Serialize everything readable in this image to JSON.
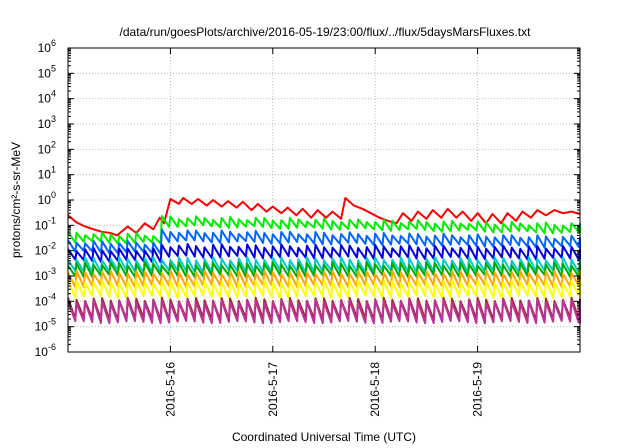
{
  "chart_data": {
    "type": "line",
    "title": "/data/run/goesPlots/archive/2016-05-19/23:00/flux/../flux/5daysMarsFluxes.txt",
    "xlabel": "Coordinated Universal Time (UTC)",
    "ylabel": "protons/cm²-s-sr-MeV",
    "xlim": [
      "2016-05-15 00:00",
      "2016-05-20 00:00"
    ],
    "ylim": [
      1e-06,
      1000000
    ],
    "y_scale": "log",
    "grid": true,
    "x_ticks": [
      "2016-5-16",
      "2016-5-17",
      "2016-5-18",
      "2016-5-19"
    ],
    "y_ticks": [
      {
        "value": 1e-06,
        "label": "10",
        "exp": "-6"
      },
      {
        "value": 1e-05,
        "label": "10",
        "exp": "-5"
      },
      {
        "value": 0.0001,
        "label": "10",
        "exp": "-4"
      },
      {
        "value": 0.001,
        "label": "10",
        "exp": "-3"
      },
      {
        "value": 0.01,
        "label": "10",
        "exp": "-2"
      },
      {
        "value": 0.1,
        "label": "10",
        "exp": "-1"
      },
      {
        "value": 1,
        "label": "10",
        "exp": "0"
      },
      {
        "value": 10,
        "label": "10",
        "exp": "1"
      },
      {
        "value": 100,
        "label": "10",
        "exp": "2"
      },
      {
        "value": 1000,
        "label": "10",
        "exp": "3"
      },
      {
        "value": 10000,
        "label": "10",
        "exp": "4"
      },
      {
        "value": 100000,
        "label": "10",
        "exp": "5"
      },
      {
        "value": 1000000,
        "label": "10",
        "exp": "6"
      }
    ],
    "series": [
      {
        "color": "#ff0000",
        "values": [
          [
            "2016-05-15 00:00",
            0.25
          ],
          [
            "2016-05-15 02:00",
            0.13
          ],
          [
            "2016-05-15 04:00",
            0.09
          ],
          [
            "2016-05-15 06:00",
            0.07
          ],
          [
            "2016-05-15 08:00",
            0.055
          ],
          [
            "2016-05-15 10:00",
            0.05
          ],
          [
            "2016-05-15 11:30",
            0.04
          ],
          [
            "2016-05-15 14:00",
            0.09
          ],
          [
            "2016-05-15 16:00",
            0.05
          ],
          [
            "2016-05-15 18:00",
            0.12
          ],
          [
            "2016-05-15 20:00",
            0.07
          ],
          [
            "2016-05-15 21:30",
            0.2
          ],
          [
            "2016-05-15 22:30",
            0.12
          ],
          [
            "2016-05-16 00:00",
            1.1
          ],
          [
            "2016-05-16 02:00",
            0.7
          ],
          [
            "2016-05-16 03:00",
            1.2
          ],
          [
            "2016-05-16 05:00",
            0.7
          ],
          [
            "2016-05-16 06:30",
            1.1
          ],
          [
            "2016-05-16 08:30",
            0.6
          ],
          [
            "2016-05-16 10:00",
            1.0
          ],
          [
            "2016-05-16 12:00",
            0.55
          ],
          [
            "2016-05-16 13:30",
            0.9
          ],
          [
            "2016-05-16 15:30",
            0.5
          ],
          [
            "2016-05-16 17:00",
            0.85
          ],
          [
            "2016-05-16 19:00",
            0.4
          ],
          [
            "2016-05-16 20:30",
            0.7
          ],
          [
            "2016-05-16 22:30",
            0.35
          ],
          [
            "2016-05-17 00:00",
            0.55
          ],
          [
            "2016-05-17 02:00",
            0.3
          ],
          [
            "2016-05-17 03:30",
            0.5
          ],
          [
            "2016-05-17 05:30",
            0.25
          ],
          [
            "2016-05-17 07:00",
            0.45
          ],
          [
            "2016-05-17 09:00",
            0.2
          ],
          [
            "2016-05-17 10:30",
            0.4
          ],
          [
            "2016-05-17 12:30",
            0.2
          ],
          [
            "2016-05-17 14:00",
            0.35
          ],
          [
            "2016-05-17 16:00",
            0.18
          ],
          [
            "2016-05-17 17:00",
            1.2
          ],
          [
            "2016-05-17 19:00",
            0.6
          ],
          [
            "2016-05-17 21:00",
            0.45
          ],
          [
            "2016-05-17 23:00",
            0.3
          ],
          [
            "2016-05-18 01:00",
            0.2
          ],
          [
            "2016-05-18 03:00",
            0.15
          ],
          [
            "2016-05-18 05:00",
            0.12
          ],
          [
            "2016-05-18 06:30",
            0.3
          ],
          [
            "2016-05-18 08:30",
            0.15
          ],
          [
            "2016-05-18 10:00",
            0.35
          ],
          [
            "2016-05-18 12:00",
            0.18
          ],
          [
            "2016-05-18 13:30",
            0.4
          ],
          [
            "2016-05-18 15:30",
            0.2
          ],
          [
            "2016-05-18 17:00",
            0.45
          ],
          [
            "2016-05-18 19:00",
            0.2
          ],
          [
            "2016-05-18 20:30",
            0.35
          ],
          [
            "2016-05-18 22:30",
            0.15
          ],
          [
            "2016-05-19 00:00",
            0.3
          ],
          [
            "2016-05-19 02:00",
            0.12
          ],
          [
            "2016-05-19 03:30",
            0.28
          ],
          [
            "2016-05-19 05:30",
            0.12
          ],
          [
            "2016-05-19 07:00",
            0.3
          ],
          [
            "2016-05-19 09:00",
            0.15
          ],
          [
            "2016-05-19 10:30",
            0.35
          ],
          [
            "2016-05-19 12:30",
            0.2
          ],
          [
            "2016-05-19 14:00",
            0.4
          ],
          [
            "2016-05-19 16:00",
            0.25
          ],
          [
            "2016-05-19 18:00",
            0.4
          ],
          [
            "2016-05-19 20:00",
            0.3
          ],
          [
            "2016-05-19 22:00",
            0.35
          ],
          [
            "2016-05-20 00:00",
            0.28
          ]
        ]
      },
      {
        "color": "#00ee00",
        "base": 0.022,
        "amp": 2.2,
        "jump": {
          "at": "2016-05-15 21:30",
          "factor": 5
        },
        "decay": -0.35
      },
      {
        "color": "#0066ff",
        "base": 0.009,
        "amp": 2.5,
        "jump": {
          "at": "2016-05-15 21:30",
          "factor": 3
        },
        "decay": -0.3
      },
      {
        "color": "#0000dd",
        "base": 0.004,
        "amp": 2.8,
        "jump": {
          "at": "2016-05-15 21:30",
          "factor": 1.5
        },
        "decay": -0.1
      },
      {
        "color": "#00cccc",
        "base": 0.0015,
        "amp": 3.2
      },
      {
        "color": "#00aa00",
        "base": 0.001,
        "amp": 3.0
      },
      {
        "color": "#ffa500",
        "base": 0.0004,
        "amp": 3.5
      },
      {
        "color": "#ffff00",
        "base": 0.00015,
        "amp": 4.0
      },
      {
        "color": "#a52a2a",
        "base": 2e-05,
        "amp": 6.0
      },
      {
        "color": "#bb3399",
        "base": 1.5e-05,
        "amp": 6.5
      }
    ]
  }
}
